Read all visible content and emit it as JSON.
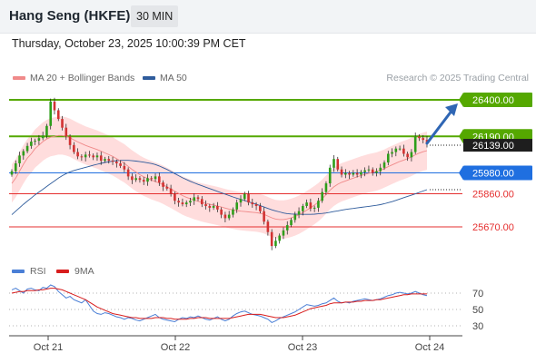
{
  "header": {
    "title": "Hang Seng (HKFE)",
    "timeframe": "30 MIN"
  },
  "datetime": "Thursday, October 23, 2025 10:00:39 PM CET",
  "legend": {
    "ma20": "MA 20 + Bollinger Bands",
    "ma50": "MA 50",
    "ma20_color": "#f08a8a",
    "ma50_color": "#2f5c9c"
  },
  "credit": "Research © 2025 Trading Central",
  "colors": {
    "up": "#2e9e1a",
    "down": "#d23232",
    "resistance": "#55a800",
    "pivot": "#1f6fe0",
    "support": "#e52f2f",
    "arrow": "#2f66b4",
    "band": "#ffd9d9"
  },
  "chart_data": [
    {
      "type": "candlestick",
      "x_labels": [
        "Oct 21",
        "Oct 22",
        "Oct 23",
        "Oct 24"
      ],
      "current_price": "26139.00",
      "levels": [
        {
          "value": "26400.00",
          "kind": "resistance"
        },
        {
          "value": "26190.00",
          "kind": "resistance"
        },
        {
          "value": "25980.00",
          "kind": "pivot"
        },
        {
          "value": "25860.00",
          "kind": "support"
        },
        {
          "value": "25670.00",
          "kind": "support"
        }
      ],
      "close": [
        25990,
        26035,
        26080,
        26105,
        26135,
        26160,
        26165,
        26180,
        26195,
        26250,
        26390,
        26340,
        26290,
        26240,
        26190,
        26140,
        26100,
        26075,
        26070,
        26085,
        26080,
        26070,
        26080,
        26050,
        26060,
        26050,
        26045,
        26035,
        26020,
        26000,
        25960,
        25940,
        25950,
        25940,
        25930,
        25950,
        25945,
        25960,
        25925,
        25900,
        25890,
        25860,
        25820,
        25810,
        25800,
        25810,
        25820,
        25840,
        25830,
        25800,
        25790,
        25780,
        25790,
        25770,
        25740,
        25720,
        25740,
        25770,
        25810,
        25830,
        25860,
        25810,
        25800,
        25790,
        25760,
        25700,
        25640,
        25560,
        25590,
        25620,
        25650,
        25680,
        25710,
        25740,
        25760,
        25790,
        25810,
        25775,
        25780,
        25820,
        25870,
        25920,
        26010,
        26060,
        26000,
        25970,
        25980,
        25970,
        25980,
        25970,
        25985,
        25995,
        26000,
        25980,
        25990,
        26010,
        26040,
        26090,
        26100,
        26120,
        26120,
        26090,
        26070,
        26100,
        26190,
        26180,
        26170,
        26150
      ],
      "ma20": [
        25920,
        25950,
        25990,
        26030,
        26065,
        26090,
        26120,
        26140,
        26160,
        26175,
        26185,
        26190,
        26195,
        26195,
        26190,
        26182,
        26170,
        26158,
        26148,
        26138,
        26130,
        26122,
        26114,
        26105,
        26095,
        26085,
        26075,
        26062,
        26048,
        26035,
        26018,
        26000,
        25985,
        25970,
        25958,
        25948,
        25938,
        25930,
        25922,
        25912,
        25900,
        25888,
        25875,
        25862,
        25850,
        25840,
        25832,
        25824,
        25817,
        25810,
        25805,
        25800,
        25795,
        25790,
        25784,
        25778,
        25772,
        25768,
        25764,
        25760,
        25758,
        25756,
        25754,
        25752,
        25748,
        25742,
        25732,
        25722,
        25715,
        25712,
        25712,
        25716,
        25722,
        25730,
        25740,
        25752,
        25766,
        25780,
        25795,
        25812,
        25832,
        25856,
        25880,
        25900,
        25915,
        25926,
        25934,
        25942,
        25950,
        25958,
        25965,
        25972,
        25978,
        25983,
        25988,
        25996,
        26005,
        26016,
        26026,
        26036,
        26046,
        26054,
        26062,
        26072,
        26084,
        26094,
        26102,
        26108
      ],
      "ma50": [
        25740,
        25760,
        25780,
        25800,
        25818,
        25836,
        25854,
        25870,
        25886,
        25902,
        25918,
        25934,
        25950,
        25964,
        25976,
        25986,
        25994,
        26000,
        26006,
        26012,
        26018,
        26024,
        26030,
        26035,
        26040,
        26044,
        26048,
        26050,
        26052,
        26052,
        26052,
        26050,
        26048,
        26045,
        26042,
        26038,
        26034,
        26028,
        26020,
        26010,
        26000,
        25988,
        25976,
        25964,
        25952,
        25942,
        25932,
        25923,
        25914,
        25906,
        25898,
        25890,
        25882,
        25874,
        25866,
        25858,
        25850,
        25842,
        25835,
        25828,
        25821,
        25814,
        25807,
        25800,
        25792,
        25784,
        25776,
        25768,
        25762,
        25756,
        25750,
        25746,
        25744,
        25743,
        25742,
        25742,
        25742,
        25742,
        25743,
        25745,
        25747,
        25750,
        25754,
        25758,
        25762,
        25766,
        25770,
        25773,
        25776,
        25779,
        25782,
        25785,
        25788,
        25791,
        25794,
        25798,
        25803,
        25809,
        25815,
        25822,
        25830,
        25838,
        25845,
        25852,
        25860,
        25868,
        25876,
        25884
      ]
    },
    {
      "type": "line",
      "legend": [
        {
          "name": "RSI",
          "color": "#4a7fd6"
        },
        {
          "name": "9MA",
          "color": "#d81d1d"
        }
      ],
      "y_ticks": [
        "70",
        "50",
        "30"
      ],
      "ylim": [
        20,
        80
      ],
      "rsi": [
        74,
        76,
        73,
        70,
        75,
        76,
        74,
        73,
        77,
        76,
        80,
        78,
        72,
        68,
        64,
        66,
        62,
        60,
        58,
        62,
        55,
        48,
        45,
        44,
        46,
        45,
        43,
        41,
        40,
        38,
        40,
        39,
        37,
        36,
        38,
        40,
        42,
        44,
        40,
        38,
        37,
        36,
        35,
        38,
        40,
        39,
        41,
        40,
        42,
        40,
        38,
        37,
        39,
        41,
        38,
        36,
        38,
        42,
        45,
        47,
        48,
        46,
        44,
        43,
        42,
        40,
        38,
        34,
        36,
        39,
        41,
        43,
        45,
        47,
        50,
        53,
        56,
        55,
        54,
        55,
        57,
        58,
        61,
        64,
        60,
        58,
        59,
        58,
        60,
        61,
        62,
        63,
        62,
        61,
        62,
        63,
        65,
        67,
        68,
        70,
        71,
        70,
        69,
        70,
        72,
        70,
        68,
        67
      ],
      "ma9": [
        70,
        71,
        72,
        72,
        73,
        73,
        73,
        74,
        74,
        75,
        76,
        76,
        75,
        74,
        72,
        70,
        68,
        66,
        64,
        62,
        59,
        56,
        53,
        51,
        49,
        47,
        45,
        44,
        43,
        42,
        41,
        40,
        40,
        39,
        39,
        39,
        39,
        40,
        40,
        40,
        39,
        39,
        38,
        38,
        38,
        38,
        39,
        39,
        40,
        40,
        40,
        39,
        39,
        39,
        39,
        39,
        39,
        40,
        41,
        42,
        43,
        44,
        44,
        44,
        44,
        43,
        42,
        41,
        40,
        40,
        40,
        41,
        42,
        43,
        45,
        47,
        49,
        51,
        52,
        53,
        54,
        55,
        57,
        58,
        58,
        58,
        59,
        59,
        59,
        60,
        60,
        61,
        61,
        61,
        62,
        62,
        63,
        64,
        65,
        66,
        67,
        68,
        68,
        69,
        69,
        69,
        69,
        69
      ]
    }
  ]
}
